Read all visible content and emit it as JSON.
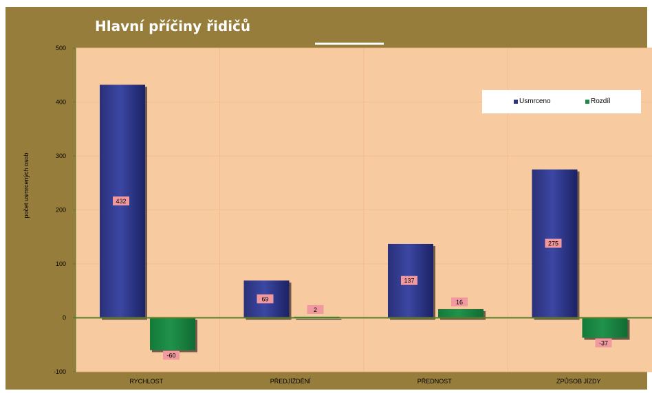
{
  "chart_data": {
    "type": "bar",
    "title": "Hlavní příčiny řidičů",
    "ylabel": "počet usmrcených osob",
    "xlabel": "",
    "ylim": [
      -100,
      500
    ],
    "yticks": [
      -100,
      0,
      100,
      200,
      300,
      400,
      500
    ],
    "categories": [
      "RYCHLOST",
      "PŘEDJÍŽDĚNÍ",
      "PŘEDNOST",
      "ZPŮSOB JÍZDY"
    ],
    "series": [
      {
        "name": "Usmrceno",
        "values": [
          432,
          69,
          137,
          275
        ],
        "color": "#2b3585"
      },
      {
        "name": "Rozdíl",
        "values": [
          -60,
          2,
          16,
          -37
        ],
        "color": "#1a8a45"
      }
    ],
    "legend_position": "top-right",
    "grid": true,
    "colors": {
      "frame": "#977d3b",
      "plot": "#f8caa0",
      "label_box": "#f09aa0",
      "axis": "#5a7d2a"
    }
  }
}
